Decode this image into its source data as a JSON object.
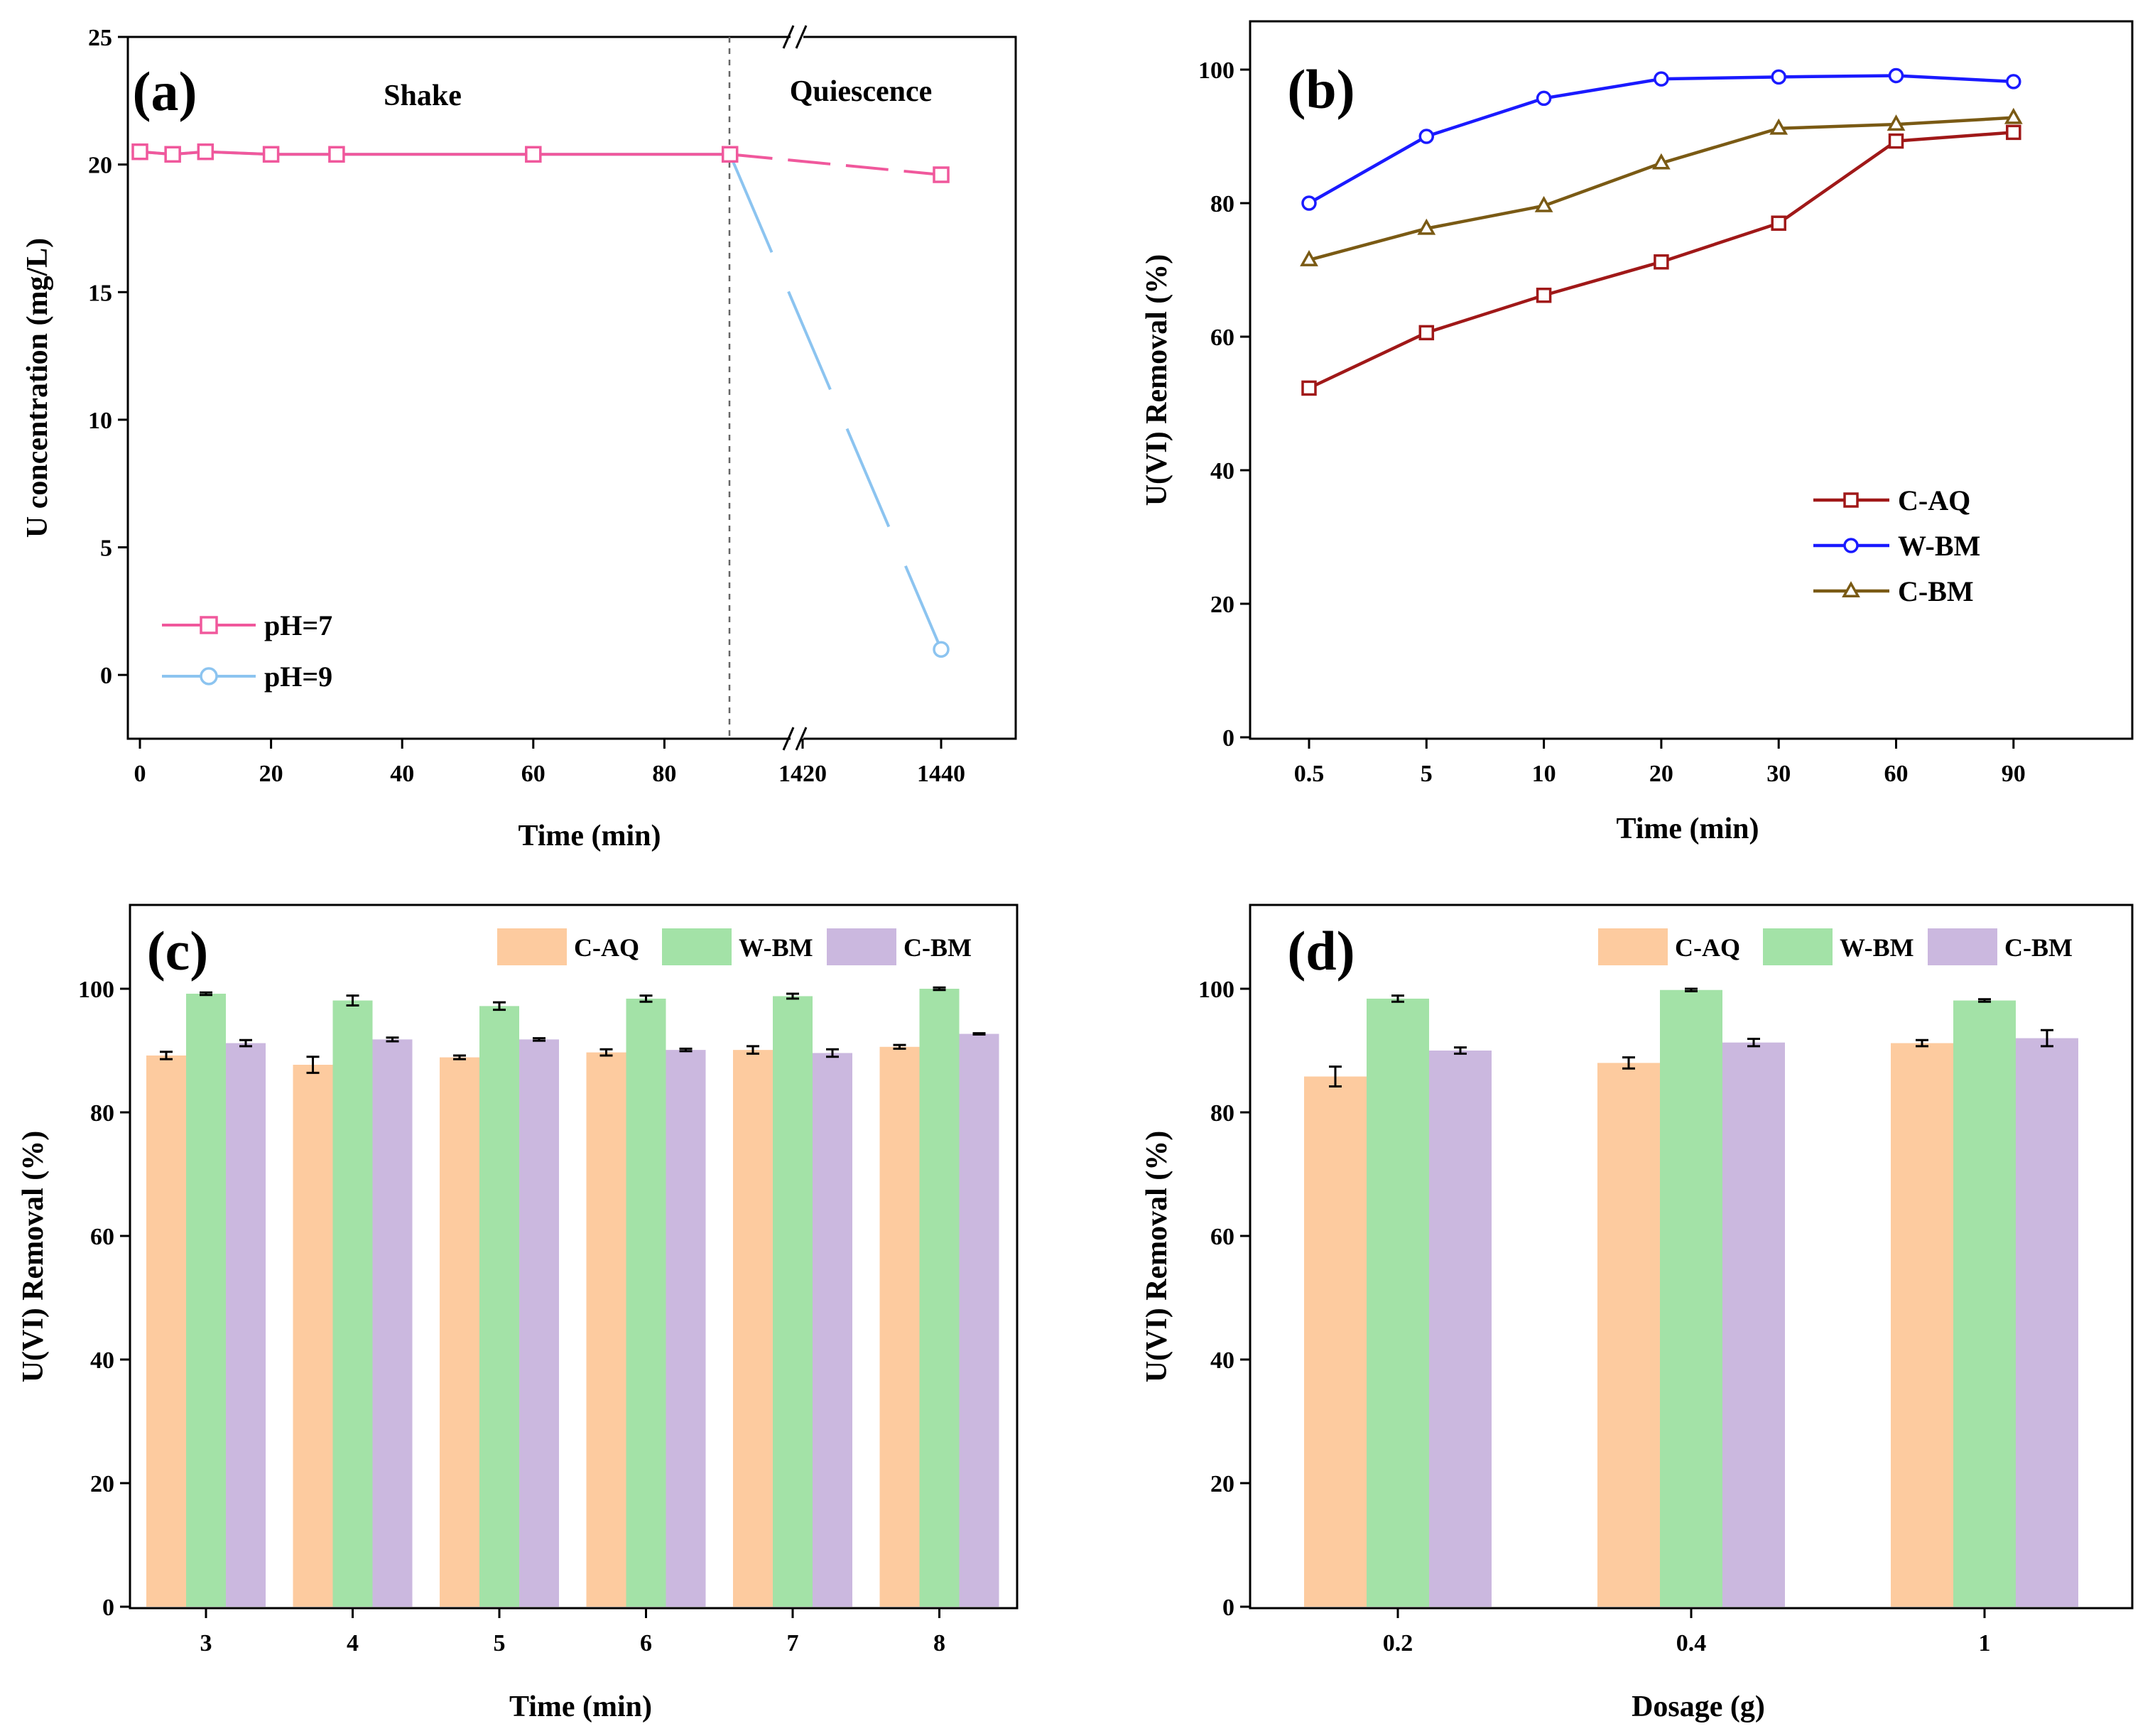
{
  "chart_data": [
    {
      "panel": "(a)",
      "type": "line",
      "xlabel": "Time (min)",
      "ylabel": "U concentration (mg/L)",
      "ylim": [
        -2.5,
        25
      ],
      "yticks": [
        "0",
        "5",
        "10",
        "15",
        "20",
        "25"
      ],
      "xticks_left": [
        "0",
        "20",
        "40",
        "60",
        "80"
      ],
      "xticks_right": [
        "1420",
        "1440"
      ],
      "x_break": "//",
      "region_labels": [
        "Shake",
        "Quiescence"
      ],
      "series": [
        {
          "name": "pH=7",
          "color": "#f0589c",
          "marker": "square",
          "x": [
            0,
            5,
            10,
            20,
            30,
            60,
            90,
            1440
          ],
          "y": [
            20.5,
            20.4,
            20.5,
            20.4,
            20.4,
            20.4,
            20.4,
            19.6
          ]
        },
        {
          "name": "pH=9",
          "color": "#8cc4f0",
          "marker": "circle",
          "x": [
            0,
            5,
            10,
            20,
            30,
            60,
            90,
            1440
          ],
          "y": [
            20.5,
            20.4,
            20.5,
            20.4,
            20.4,
            20.4,
            20.4,
            1.0
          ]
        }
      ]
    },
    {
      "panel": "(b)",
      "type": "line",
      "xlabel": "Time (min)",
      "ylabel": "U(VI) Removal (%)",
      "ylim": [
        0,
        105
      ],
      "yticks": [
        "0",
        "20",
        "40",
        "60",
        "80",
        "100"
      ],
      "categories": [
        "0.5",
        "5",
        "10",
        "20",
        "30",
        "60",
        "90"
      ],
      "series": [
        {
          "name": "C-AQ",
          "color": "#a01818",
          "marker": "square",
          "values": [
            52.3,
            60.6,
            66.2,
            71.2,
            77.0,
            89.3,
            90.6
          ]
        },
        {
          "name": "W-BM",
          "color": "#1a1aff",
          "marker": "circle",
          "values": [
            80.0,
            90.0,
            95.7,
            98.6,
            98.9,
            99.1,
            98.2
          ]
        },
        {
          "name": "C-BM",
          "color": "#7a5a14",
          "marker": "triangle",
          "values": [
            71.5,
            76.2,
            79.6,
            86.0,
            91.2,
            91.8,
            92.8
          ]
        }
      ]
    },
    {
      "panel": "(c)",
      "type": "bar",
      "xlabel": "Time (min)",
      "ylabel": "U(VI) Removal (%)",
      "ylim": [
        0,
        112
      ],
      "yticks": [
        "0",
        "20",
        "40",
        "60",
        "80",
        "100"
      ],
      "categories": [
        "3",
        "4",
        "5",
        "6",
        "7",
        "8"
      ],
      "series": [
        {
          "name": "C-AQ",
          "color": "#fdcb9f",
          "values": [
            89.2,
            87.7,
            88.9,
            89.7,
            90.1,
            90.6
          ],
          "errors": [
            0.6,
            1.3,
            0.3,
            0.5,
            0.6,
            0.3
          ]
        },
        {
          "name": "W-BM",
          "color": "#a3e2a7",
          "values": [
            99.2,
            98.1,
            97.2,
            98.4,
            98.8,
            100.0
          ],
          "errors": [
            0.2,
            0.8,
            0.6,
            0.5,
            0.4,
            0.2
          ]
        },
        {
          "name": "C-BM",
          "color": "#cbb8df",
          "values": [
            91.2,
            91.8,
            91.8,
            90.1,
            89.6,
            92.7
          ],
          "errors": [
            0.5,
            0.3,
            0.2,
            0.2,
            0.6,
            0.1
          ]
        }
      ]
    },
    {
      "panel": "(d)",
      "type": "bar",
      "xlabel": "Dosage (g)",
      "ylabel": "U(VI) Removal (%)",
      "ylim": [
        0,
        112
      ],
      "yticks": [
        "0",
        "20",
        "40",
        "60",
        "80",
        "100"
      ],
      "categories": [
        "0.2",
        "0.4",
        "1"
      ],
      "series": [
        {
          "name": "C-AQ",
          "color": "#fdcb9f",
          "values": [
            85.8,
            88.0,
            91.2
          ],
          "errors": [
            1.6,
            0.9,
            0.5
          ]
        },
        {
          "name": "W-BM",
          "color": "#a3e2a7",
          "values": [
            98.4,
            99.8,
            98.1
          ],
          "errors": [
            0.5,
            0.2,
            0.2
          ]
        },
        {
          "name": "C-BM",
          "color": "#cbb8df",
          "values": [
            90.0,
            91.3,
            92.0
          ],
          "errors": [
            0.5,
            0.6,
            1.3
          ]
        }
      ]
    }
  ]
}
